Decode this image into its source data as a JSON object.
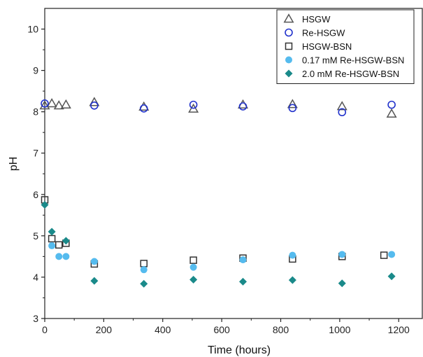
{
  "chart_data": {
    "type": "scatter",
    "xlabel": "Time (hours)",
    "ylabel": "pH",
    "xlim": [
      0,
      1280
    ],
    "ylim": [
      3,
      10.5
    ],
    "xticks": [
      0,
      200,
      400,
      600,
      800,
      1000,
      1200
    ],
    "yticks": [
      3,
      4,
      5,
      6,
      7,
      8,
      9,
      10
    ],
    "grid": false,
    "legend_position": "top-right",
    "series": [
      {
        "name": "HSGW",
        "marker": "triangle-open",
        "color": "#555555",
        "x": [
          0,
          24,
          48,
          72,
          168,
          336,
          504,
          672,
          840,
          1008,
          1176
        ],
        "y": [
          8.15,
          8.2,
          8.15,
          8.17,
          8.23,
          8.12,
          8.07,
          8.17,
          8.18,
          8.13,
          7.95
        ]
      },
      {
        "name": "Re-HSGW",
        "marker": "circle-open",
        "color": "#2233cc",
        "x": [
          0,
          168,
          336,
          504,
          672,
          840,
          1008,
          1176
        ],
        "y": [
          8.2,
          8.15,
          8.08,
          8.17,
          8.13,
          8.09,
          7.99,
          8.17
        ]
      },
      {
        "name": "HSGW-BSN",
        "marker": "square-open",
        "color": "#333333",
        "x": [
          0,
          24,
          48,
          72,
          168,
          336,
          504,
          672,
          840,
          1008,
          1150
        ],
        "y": [
          5.87,
          4.93,
          4.78,
          4.82,
          4.32,
          4.33,
          4.41,
          4.46,
          4.44,
          4.5,
          4.53
        ]
      },
      {
        "name": "0.17 mM Re-HSGW-BSN",
        "marker": "circle-filled",
        "color": "#55bbee",
        "x": [
          24,
          48,
          72,
          168,
          336,
          504,
          672,
          840,
          1008,
          1176
        ],
        "y": [
          4.76,
          4.5,
          4.5,
          4.38,
          4.18,
          4.24,
          4.42,
          4.53,
          4.55,
          4.55
        ]
      },
      {
        "name": "2.0 mM Re-HSGW-BSN",
        "marker": "diamond-filled",
        "color": "#1a8a8a",
        "x": [
          0,
          24,
          72,
          168,
          336,
          504,
          672,
          840,
          1008,
          1176
        ],
        "y": [
          5.75,
          5.1,
          4.88,
          3.91,
          3.84,
          3.94,
          3.89,
          3.93,
          3.85,
          4.02
        ]
      }
    ]
  }
}
